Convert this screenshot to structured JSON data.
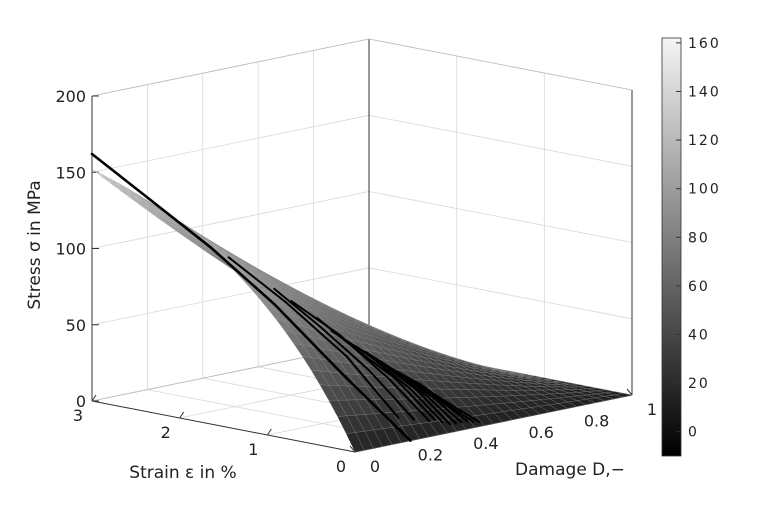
{
  "chart_data": {
    "type": "surface3d",
    "axes": {
      "z": {
        "label": "Stress σ in MPa",
        "range": [
          0,
          200
        ],
        "ticks": [
          "0",
          "50",
          "100",
          "150",
          "200"
        ]
      },
      "strain": {
        "label": "Strain ε in %",
        "range": [
          0,
          3
        ],
        "ticks": [
          "0",
          "1",
          "2",
          "3"
        ]
      },
      "damage": {
        "label": "Damage D,−",
        "range": [
          0,
          1
        ],
        "ticks": [
          "0",
          "0.2",
          "0.4",
          "0.6",
          "0.8",
          "1"
        ]
      }
    },
    "grid": true,
    "colormap": "gray",
    "colorbar": {
      "range": [
        -10,
        162
      ],
      "ticks": [
        "0",
        "20",
        "40",
        "60",
        "80",
        "100",
        "120",
        "140",
        "160"
      ]
    },
    "surface": {
      "description_values": {
        "stress_at_D0_by_strain": {
          "strain": [
            0,
            1,
            2,
            3
          ],
          "stress": [
            0,
            60,
            115,
            158
          ]
        },
        "stress_at_D1": 0
      }
    },
    "curves": [
      {
        "strain": [
          3.0,
          2.4,
          1.8,
          1.2,
          0.6,
          0.0
        ],
        "damage": [
          0.0,
          0.02,
          0.05,
          0.09,
          0.14,
          0.2
        ],
        "stress": [
          162,
          138,
          112,
          80,
          40,
          0
        ]
      },
      {
        "strain": [
          1.6,
          1.1,
          0.6,
          0.2
        ],
        "damage": [
          0.05,
          0.1,
          0.16,
          0.22
        ],
        "stress": [
          108,
          82,
          50,
          12
        ]
      },
      {
        "strain": [
          1.3,
          0.9,
          0.5,
          0.15
        ],
        "damage": [
          0.12,
          0.16,
          0.21,
          0.26
        ],
        "stress": [
          88,
          66,
          40,
          10
        ]
      },
      {
        "strain": [
          1.2,
          0.8,
          0.4,
          0.1
        ],
        "damage": [
          0.15,
          0.2,
          0.25,
          0.3
        ],
        "stress": [
          80,
          60,
          34,
          8
        ]
      },
      {
        "strain": [
          1.0,
          0.7,
          0.4,
          0.1
        ],
        "damage": [
          0.18,
          0.22,
          0.27,
          0.32
        ],
        "stress": [
          70,
          52,
          34,
          8
        ]
      },
      {
        "strain": [
          0.9,
          0.6,
          0.3,
          0.08
        ],
        "damage": [
          0.2,
          0.25,
          0.3,
          0.34
        ],
        "stress": [
          62,
          46,
          26,
          6
        ]
      },
      {
        "strain": [
          0.8,
          0.55,
          0.3,
          0.05
        ],
        "damage": [
          0.22,
          0.27,
          0.32,
          0.36
        ],
        "stress": [
          56,
          42,
          25,
          4
        ]
      },
      {
        "strain": [
          0.75,
          0.5,
          0.25,
          0.05
        ],
        "damage": [
          0.24,
          0.29,
          0.34,
          0.38
        ],
        "stress": [
          52,
          38,
          21,
          4
        ]
      },
      {
        "strain": [
          0.7,
          0.45,
          0.2,
          0.05
        ],
        "damage": [
          0.26,
          0.31,
          0.36,
          0.4
        ],
        "stress": [
          48,
          34,
          18,
          4
        ]
      },
      {
        "strain": [
          0.6,
          0.4,
          0.2,
          0.05
        ],
        "damage": [
          0.28,
          0.33,
          0.38,
          0.42
        ],
        "stress": [
          42,
          30,
          16,
          4
        ]
      },
      {
        "strain": [
          0.55,
          0.35,
          0.15,
          0.04
        ],
        "damage": [
          0.3,
          0.35,
          0.4,
          0.44
        ],
        "stress": [
          38,
          27,
          12,
          3
        ]
      },
      {
        "strain": [
          0.5,
          0.3,
          0.12,
          0.03
        ],
        "damage": [
          0.32,
          0.37,
          0.42,
          0.46
        ],
        "stress": [
          34,
          22,
          10,
          2
        ]
      }
    ]
  }
}
